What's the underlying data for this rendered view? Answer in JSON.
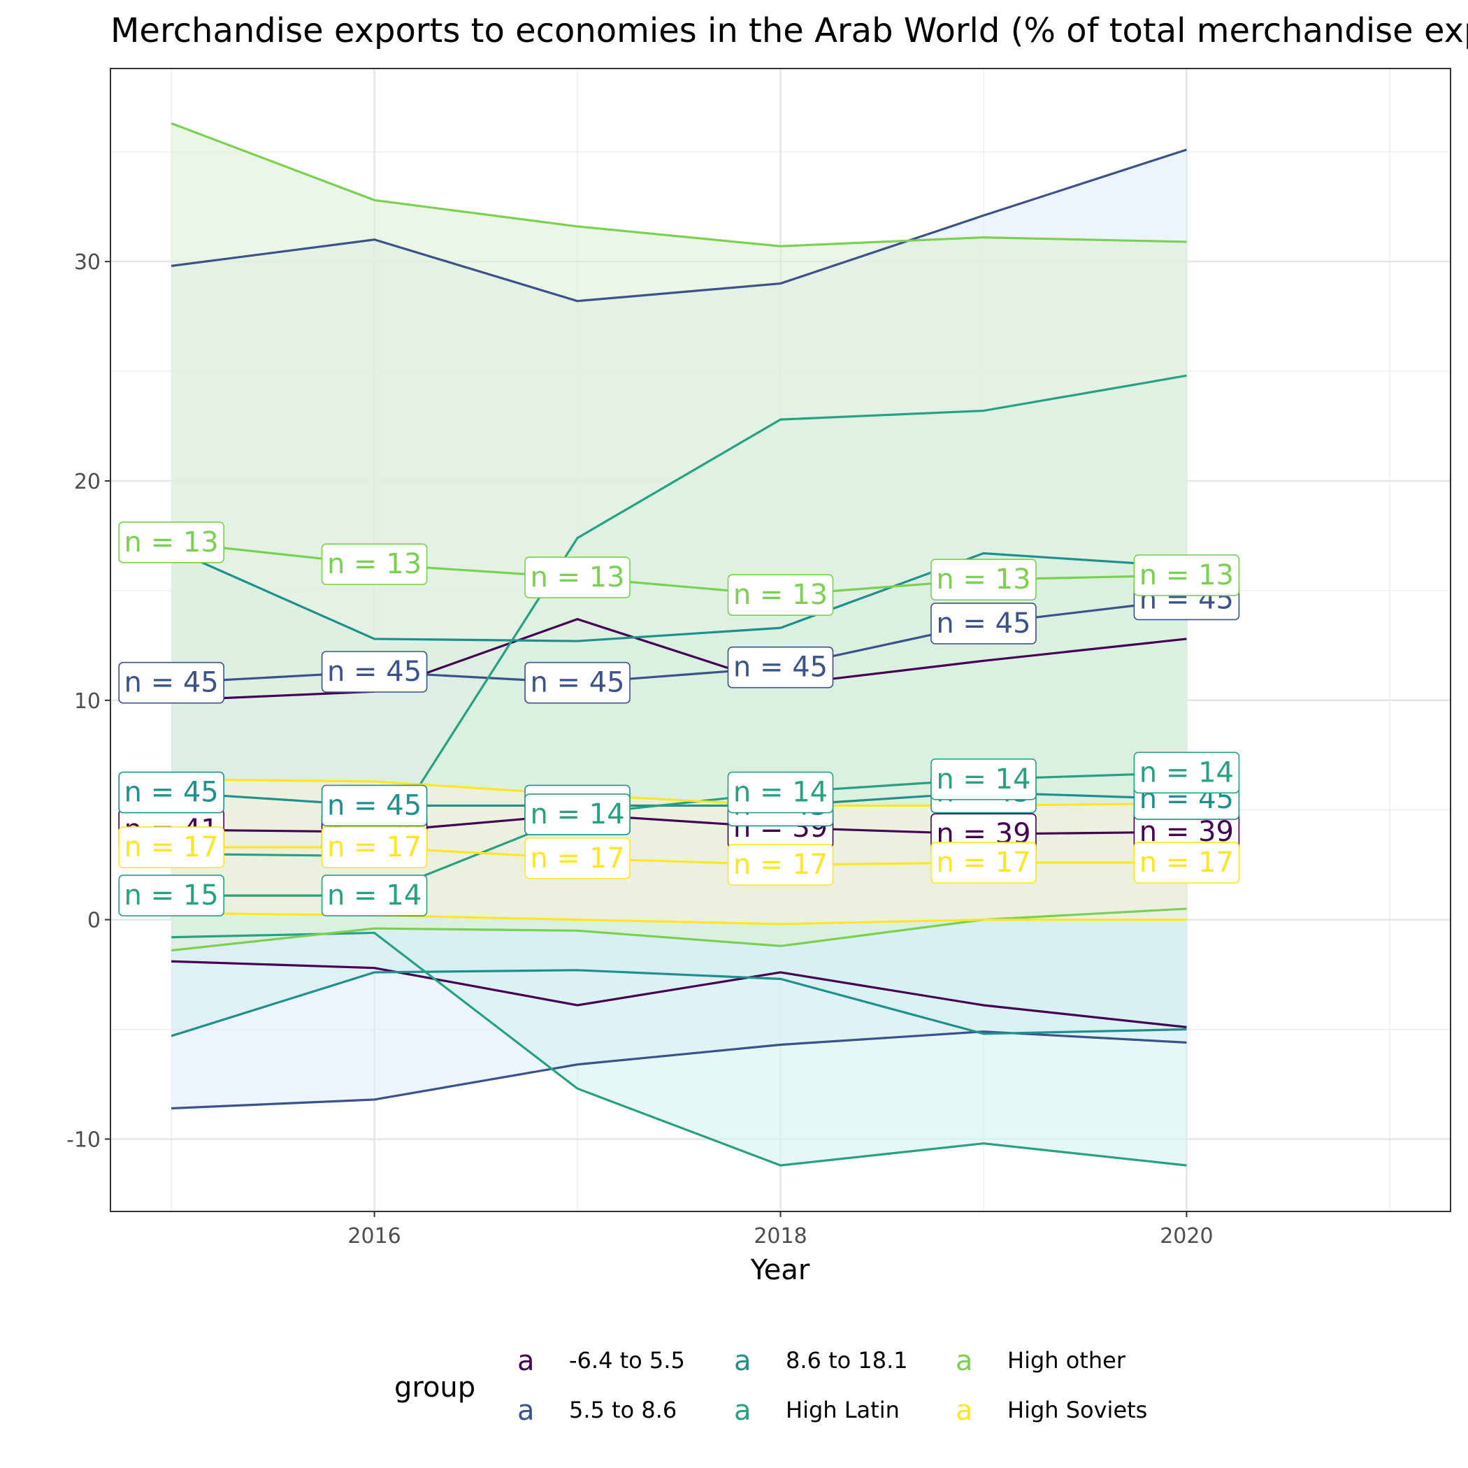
{
  "chart_data": {
    "type": "line",
    "title": "Merchandise exports to economies in the Arab World (% of total merchandise exports)",
    "xlabel": "Year",
    "ylabel": "",
    "xlim": [
      2014.7,
      2021.3
    ],
    "ylim": [
      -13.3,
      38.8
    ],
    "x_ticks": [
      2016,
      2018,
      2020
    ],
    "y_ticks": [
      -10,
      0,
      10,
      20,
      30
    ],
    "y_tick_labels": [
      "-10",
      "0",
      "10",
      "20",
      "30"
    ],
    "x": [
      2015,
      2016,
      2017,
      2018,
      2019,
      2020
    ],
    "grid": true,
    "legend": {
      "title": "group",
      "position": "bottom",
      "glyph": "a"
    },
    "series": [
      {
        "name": "-6.4 to 5.5",
        "color": "#440154",
        "fill": "#ece4f2",
        "n_labels": [
          "n = 41",
          "n = 39",
          "n = 39",
          "n = 39",
          "n = 39",
          "n = 39"
        ],
        "mean": [
          4.1,
          4.0,
          4.8,
          4.2,
          3.9,
          4.0
        ],
        "upper": [
          10.0,
          10.4,
          13.7,
          10.7,
          11.8,
          12.8
        ],
        "lower": [
          -1.9,
          -2.2,
          -3.9,
          -2.4,
          -3.9,
          -4.9
        ]
      },
      {
        "name": "5.5 to 8.6",
        "color": "#3b528b",
        "fill": "#e1edfb",
        "n_labels": [
          "n = 45",
          "n = 45",
          "n = 45",
          "n = 45",
          "n = 45",
          "n = 45"
        ],
        "mean": [
          10.8,
          11.3,
          10.8,
          11.5,
          13.5,
          14.6
        ],
        "upper": [
          29.8,
          31.0,
          28.2,
          29.0,
          32.1,
          35.1
        ],
        "lower": [
          -8.6,
          -8.2,
          -6.6,
          -5.7,
          -5.1,
          -5.6
        ]
      },
      {
        "name": "8.6 to 18.1",
        "color": "#21908c",
        "fill": "#d6eef0",
        "n_labels": [
          "n = 45",
          "n = 45",
          "n = 45",
          "n = 45",
          "n = 45",
          "n = 45"
        ],
        "mean": [
          5.8,
          5.2,
          5.2,
          5.2,
          5.8,
          5.5
        ],
        "upper": [
          16.9,
          12.8,
          12.7,
          13.3,
          16.7,
          16.1
        ],
        "lower": [
          -5.3,
          -2.4,
          -2.3,
          -2.7,
          -5.2,
          -5.0
        ]
      },
      {
        "name": "High Latin",
        "color": "#27a182",
        "fill": "#d5f2f1",
        "n_labels": [
          "n = 15",
          "n = 14",
          "n = 14",
          "n = 14",
          "n = 14",
          "n = 14"
        ],
        "mean": [
          1.1,
          1.1,
          4.8,
          5.8,
          6.4,
          6.7
        ],
        "upper": [
          3.0,
          2.9,
          17.4,
          22.8,
          23.2,
          24.8
        ],
        "lower": [
          -0.8,
          -0.6,
          -7.7,
          -11.2,
          -10.2,
          -11.2
        ]
      },
      {
        "name": "High other",
        "color": "#7ad151",
        "fill": "#ddf0d6",
        "n_labels": [
          "n = 13",
          "n = 13",
          "n = 13",
          "n = 13",
          "n = 13",
          "n = 13"
        ],
        "mean": [
          17.2,
          16.2,
          15.6,
          14.8,
          15.5,
          15.7
        ],
        "upper": [
          36.3,
          32.8,
          31.6,
          30.7,
          31.1,
          30.9
        ],
        "lower": [
          -1.4,
          -0.4,
          -0.5,
          -1.2,
          0.0,
          0.5
        ]
      },
      {
        "name": "High Soviets",
        "color": "#fde725",
        "fill": "#f5f1dc",
        "n_labels": [
          "n = 17",
          "n = 17",
          "n = 17",
          "n = 17",
          "n = 17",
          "n = 17"
        ],
        "mean": [
          3.3,
          3.3,
          2.8,
          2.5,
          2.6,
          2.6
        ],
        "upper": [
          6.4,
          6.3,
          5.7,
          5.2,
          5.2,
          5.3
        ],
        "lower": [
          0.3,
          0.2,
          0.0,
          -0.2,
          0.0,
          0.0
        ]
      }
    ]
  }
}
